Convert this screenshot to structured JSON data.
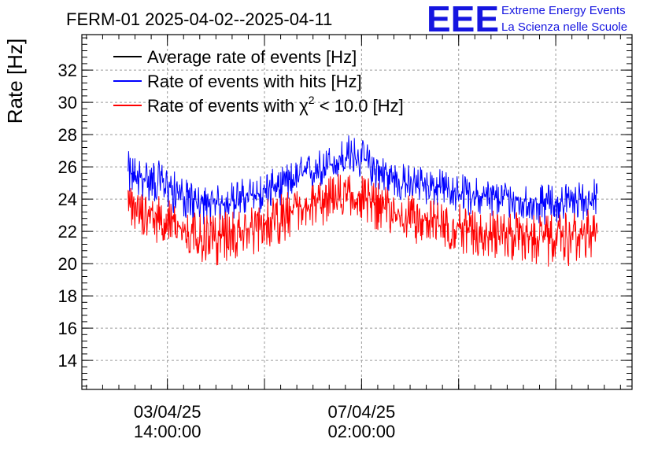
{
  "header": {
    "title": "FERM-01 2025-04-02--2025-04-11",
    "logo_text": "EEE",
    "logo_line1": "Extreme Energy Events",
    "logo_line2": "La Scienza nelle Scuole"
  },
  "colors": {
    "average": "#000000",
    "hits": "#0000ff",
    "chi2": "#ff0000",
    "logo": "#1515e0",
    "grid": "#9a9a9a"
  },
  "chart_data": {
    "type": "line",
    "ylabel": "Rate [Hz]",
    "ylim": [
      12.2,
      34.2
    ],
    "y_ticks": [
      14,
      16,
      18,
      20,
      22,
      24,
      26,
      28,
      30,
      32
    ],
    "xlim": [
      "2025-04-02 01:00",
      "2025-04-11 23:00"
    ],
    "x_ticks": [
      {
        "x": "2025-04-03 14:00",
        "date": "03/04/25",
        "time": "14:00:00"
      },
      {
        "x": "2025-04-07 02:00",
        "date": "07/04/25",
        "time": "02:00:00"
      }
    ],
    "grid": true,
    "legend_position": "top-left",
    "legend": [
      {
        "key": "average",
        "text": "Average rate of events [Hz]"
      },
      {
        "key": "hits",
        "text": "Rate of events with hits [Hz]"
      },
      {
        "key": "chi2",
        "prefix": "Rate of events with ",
        "symbol": "χ",
        "sup": "2",
        "suffix": " < 10.0 [Hz]"
      }
    ],
    "x_start": "2025-04-02 21:00",
    "x_end": "2025-04-11 08:00",
    "series": [
      {
        "name": "Rate of events with hits [Hz]",
        "key": "hits",
        "x": [
          "2025-04-02 21:00",
          "2025-04-03 03:00",
          "2025-04-03 09:00",
          "2025-04-03 15:00",
          "2025-04-03 21:00",
          "2025-04-04 03:00",
          "2025-04-04 09:00",
          "2025-04-04 15:00",
          "2025-04-04 21:00",
          "2025-04-05 03:00",
          "2025-04-05 09:00",
          "2025-04-05 15:00",
          "2025-04-05 21:00",
          "2025-04-06 03:00",
          "2025-04-06 09:00",
          "2025-04-06 15:00",
          "2025-04-06 21:00",
          "2025-04-07 03:00",
          "2025-04-07 09:00",
          "2025-04-07 15:00",
          "2025-04-07 21:00",
          "2025-04-08 03:00",
          "2025-04-08 09:00",
          "2025-04-08 15:00",
          "2025-04-08 21:00",
          "2025-04-09 03:00",
          "2025-04-09 09:00",
          "2025-04-09 15:00",
          "2025-04-09 21:00",
          "2025-04-10 03:00",
          "2025-04-10 09:00",
          "2025-04-10 15:00",
          "2025-04-10 21:00",
          "2025-04-11 03:00",
          "2025-04-11 08:00"
        ],
        "mean": [
          25.5,
          25.3,
          25.2,
          24.8,
          24.2,
          23.8,
          23.6,
          23.8,
          24.1,
          24.2,
          24.6,
          24.8,
          25.3,
          25.6,
          25.9,
          26.3,
          26.6,
          26.4,
          25.8,
          25.3,
          25.0,
          25.0,
          24.8,
          24.6,
          24.4,
          24.2,
          24.1,
          24.0,
          23.9,
          23.8,
          23.7,
          23.8,
          23.9,
          24.0,
          24.2
        ],
        "low": [
          24.3,
          23.9,
          23.7,
          23.2,
          22.8,
          22.5,
          22.3,
          22.6,
          22.8,
          22.9,
          23.3,
          23.6,
          24.0,
          24.4,
          24.7,
          25.2,
          25.4,
          25.1,
          24.5,
          24.0,
          23.7,
          23.7,
          23.5,
          23.3,
          23.1,
          22.9,
          22.8,
          22.7,
          22.6,
          22.5,
          22.4,
          22.5,
          22.6,
          22.7,
          23.0
        ],
        "high": [
          27.0,
          26.6,
          26.5,
          26.0,
          25.3,
          24.9,
          24.8,
          25.0,
          25.3,
          25.4,
          25.8,
          26.0,
          26.5,
          26.9,
          27.2,
          27.6,
          28.1,
          27.7,
          27.0,
          26.5,
          26.2,
          26.2,
          26.0,
          25.8,
          25.6,
          25.4,
          25.3,
          25.2,
          25.1,
          25.0,
          24.9,
          25.0,
          25.1,
          25.2,
          25.4
        ]
      },
      {
        "name": "Rate of events with χ2 < 10.0 [Hz]",
        "key": "chi2",
        "x": [
          "2025-04-02 21:00",
          "2025-04-03 03:00",
          "2025-04-03 09:00",
          "2025-04-03 15:00",
          "2025-04-03 21:00",
          "2025-04-04 03:00",
          "2025-04-04 09:00",
          "2025-04-04 15:00",
          "2025-04-04 21:00",
          "2025-04-05 03:00",
          "2025-04-05 09:00",
          "2025-04-05 15:00",
          "2025-04-05 21:00",
          "2025-04-06 03:00",
          "2025-04-06 09:00",
          "2025-04-06 15:00",
          "2025-04-06 21:00",
          "2025-04-07 03:00",
          "2025-04-07 09:00",
          "2025-04-07 15:00",
          "2025-04-07 21:00",
          "2025-04-08 03:00",
          "2025-04-08 09:00",
          "2025-04-08 15:00",
          "2025-04-08 21:00",
          "2025-04-09 03:00",
          "2025-04-09 09:00",
          "2025-04-09 15:00",
          "2025-04-09 21:00",
          "2025-04-10 03:00",
          "2025-04-10 09:00",
          "2025-04-10 15:00",
          "2025-04-10 21:00",
          "2025-04-11 03:00",
          "2025-04-11 08:00"
        ],
        "mean": [
          23.3,
          23.1,
          23.0,
          22.6,
          22.1,
          21.7,
          21.6,
          21.8,
          22.0,
          22.2,
          22.6,
          22.8,
          23.2,
          23.5,
          23.8,
          24.1,
          24.4,
          24.1,
          23.6,
          23.2,
          22.9,
          22.8,
          22.6,
          22.4,
          22.3,
          22.1,
          22.0,
          21.9,
          21.8,
          21.7,
          21.6,
          21.6,
          21.7,
          21.8,
          22.0
        ],
        "low": [
          21.6,
          21.5,
          21.3,
          21.0,
          20.5,
          20.1,
          19.6,
          20.0,
          20.3,
          20.5,
          20.9,
          21.2,
          21.7,
          21.9,
          22.3,
          22.6,
          22.9,
          22.6,
          22.0,
          21.6,
          21.3,
          21.2,
          21.0,
          20.8,
          20.6,
          20.4,
          20.3,
          20.2,
          20.0,
          19.9,
          19.8,
          19.6,
          19.9,
          20.1,
          20.4
        ],
        "high": [
          24.9,
          24.6,
          24.4,
          24.0,
          23.5,
          23.1,
          23.0,
          23.2,
          23.5,
          23.6,
          24.0,
          24.3,
          24.7,
          25.0,
          25.3,
          25.6,
          26.0,
          25.6,
          25.1,
          24.6,
          24.3,
          24.2,
          24.0,
          23.8,
          23.7,
          23.5,
          23.4,
          23.3,
          23.2,
          23.1,
          23.0,
          23.1,
          23.2,
          23.3,
          23.5
        ]
      }
    ]
  }
}
